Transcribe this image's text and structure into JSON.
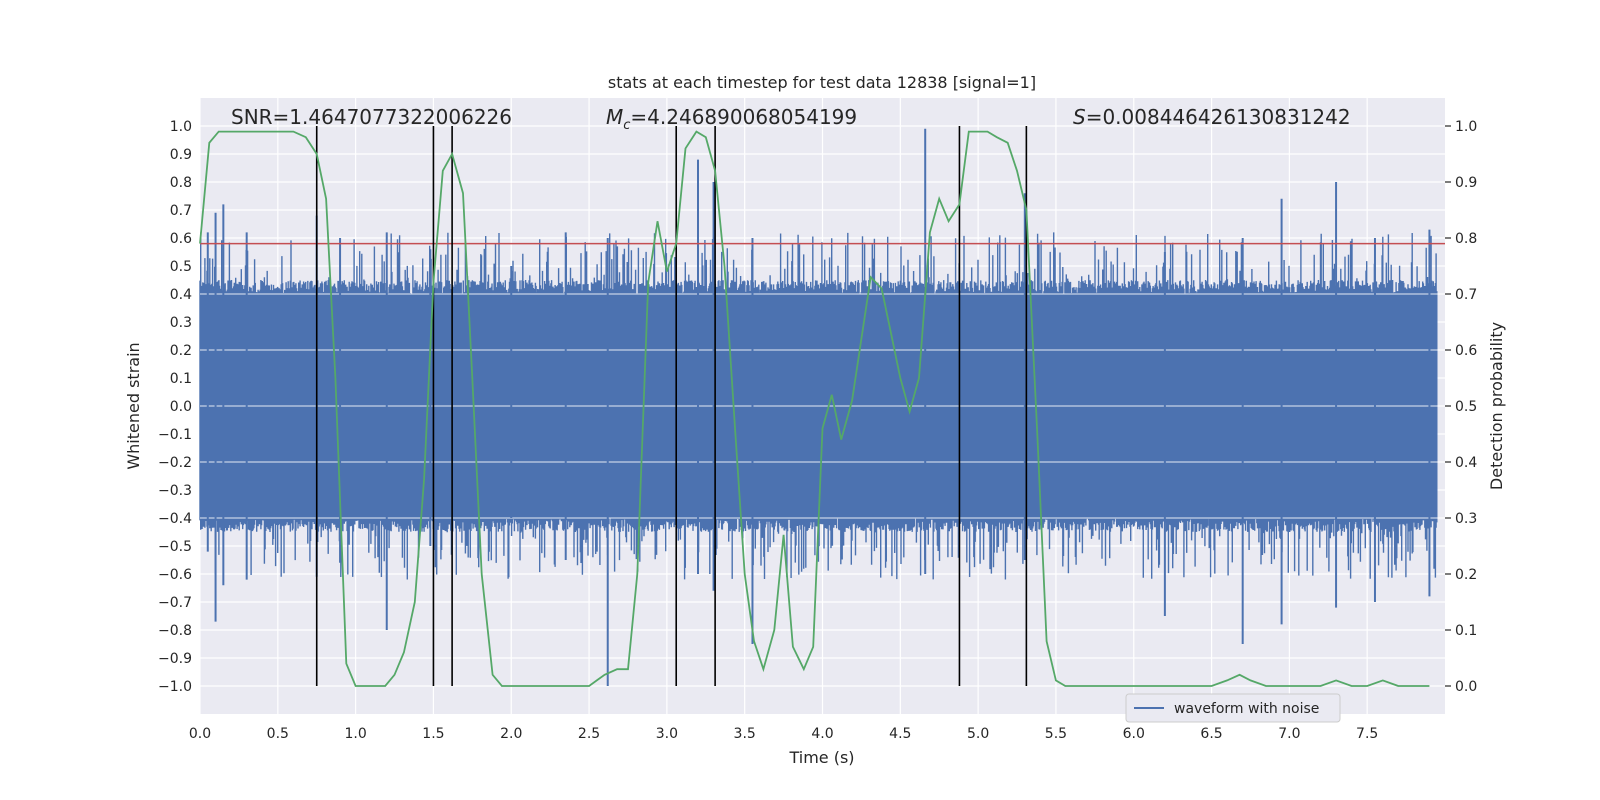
{
  "chart_data": {
    "type": "line",
    "title": "stats at each timestep for test data 12838 [signal=1]",
    "xlabel": "Time (s)",
    "ylabel": "Whitened strain",
    "y2label": "Detection probability",
    "xlim": [
      0.0,
      8.0
    ],
    "ylim": [
      -1.1,
      1.1
    ],
    "y2lim": [
      -0.05,
      1.05
    ],
    "grid": true,
    "x_ticks": [
      "0.0",
      "0.5",
      "1.0",
      "1.5",
      "2.0",
      "2.5",
      "3.0",
      "3.5",
      "4.0",
      "4.5",
      "5.0",
      "5.5",
      "6.0",
      "6.5",
      "7.0",
      "7.5"
    ],
    "y_ticks": [
      "1.0",
      "0.9",
      "0.8",
      "0.7",
      "0.6",
      "0.5",
      "0.4",
      "0.3",
      "0.2",
      "0.1",
      "0.0",
      "−0.1",
      "−0.2",
      "−0.3",
      "−0.4",
      "−0.5",
      "−0.6",
      "−0.7",
      "−0.8",
      "−0.9",
      "−1.0"
    ],
    "y2_ticks": [
      "1.0",
      "0.9",
      "0.8",
      "0.7",
      "0.6",
      "0.5",
      "0.4",
      "0.3",
      "0.2",
      "0.1",
      "0.0"
    ],
    "annotations": {
      "snr": "SNR=1.4647077322006226",
      "mc_symbol": "M",
      "mc_sub": "c",
      "mc_value": "=4.246890068054199",
      "s_symbol": "S",
      "s_value": "=0.008446426130831242"
    },
    "legend": {
      "label": "waveform with noise",
      "placement": "lower-right"
    },
    "threshold": 0.79,
    "segment_boundaries": [
      0.75,
      1.5,
      1.62,
      3.06,
      3.31,
      4.88,
      5.31
    ],
    "waveform": {
      "name": "waveform with noise",
      "color": "#4c72b0",
      "envelope_high": 0.4,
      "envelope_low": -0.4,
      "spikes": [
        [
          0.05,
          0.62,
          -0.52
        ],
        [
          0.1,
          0.69,
          -0.77
        ],
        [
          0.15,
          0.72,
          -0.64
        ],
        [
          0.3,
          0.62,
          -0.62
        ],
        [
          0.75,
          0.68,
          -0.61
        ],
        [
          0.9,
          0.6,
          -0.56
        ],
        [
          1.2,
          0.62,
          -0.8
        ],
        [
          1.48,
          0.56,
          -0.5
        ],
        [
          2.0,
          0.5,
          -0.4
        ],
        [
          2.35,
          0.62,
          -0.55
        ],
        [
          2.62,
          0.6,
          -1.0
        ],
        [
          3.2,
          0.88,
          -0.6
        ],
        [
          3.3,
          0.8,
          -0.66
        ],
        [
          3.55,
          0.6,
          -0.85
        ],
        [
          4.66,
          0.99,
          -0.6
        ],
        [
          5.3,
          0.76,
          -0.55
        ],
        [
          6.2,
          0.55,
          -0.75
        ],
        [
          6.7,
          0.6,
          -0.85
        ],
        [
          6.95,
          0.74,
          -0.78
        ],
        [
          7.3,
          0.8,
          -0.72
        ],
        [
          7.55,
          0.6,
          -0.7
        ],
        [
          7.9,
          0.63,
          -0.68
        ]
      ]
    },
    "detection_probability": {
      "color": "#55a868",
      "x": [
        0.0,
        0.06,
        0.12,
        0.2,
        0.3,
        0.4,
        0.5,
        0.6,
        0.68,
        0.75,
        0.81,
        0.87,
        0.94,
        1.0,
        1.06,
        1.12,
        1.19,
        1.25,
        1.31,
        1.38,
        1.44,
        1.5,
        1.56,
        1.62,
        1.69,
        1.75,
        1.81,
        1.88,
        1.94,
        2.0,
        2.1,
        2.2,
        2.3,
        2.4,
        2.5,
        2.55,
        2.6,
        2.68,
        2.75,
        2.81,
        2.88,
        2.94,
        3.0,
        3.06,
        3.12,
        3.19,
        3.25,
        3.31,
        3.37,
        3.44,
        3.5,
        3.56,
        3.62,
        3.69,
        3.75,
        3.81,
        3.88,
        3.94,
        4.0,
        4.06,
        4.12,
        4.19,
        4.25,
        4.31,
        4.38,
        4.44,
        4.5,
        4.56,
        4.62,
        4.69,
        4.75,
        4.81,
        4.88,
        4.94,
        5.0,
        5.06,
        5.12,
        5.19,
        5.25,
        5.31,
        5.38,
        5.44,
        5.5,
        5.56,
        5.7,
        5.8,
        5.9,
        6.0,
        6.2,
        6.4,
        6.5,
        6.6,
        6.68,
        6.75,
        6.85,
        7.0,
        7.2,
        7.3,
        7.4,
        7.5,
        7.6,
        7.7,
        7.8,
        7.9
      ],
      "y": [
        0.79,
        0.97,
        0.99,
        0.99,
        0.99,
        0.99,
        0.99,
        0.99,
        0.98,
        0.95,
        0.87,
        0.55,
        0.04,
        0.0,
        0.0,
        0.0,
        0.0,
        0.02,
        0.06,
        0.15,
        0.37,
        0.72,
        0.92,
        0.95,
        0.88,
        0.55,
        0.2,
        0.02,
        0.0,
        0.0,
        0.0,
        0.0,
        0.0,
        0.0,
        0.0,
        0.01,
        0.02,
        0.03,
        0.03,
        0.2,
        0.72,
        0.83,
        0.74,
        0.79,
        0.96,
        0.99,
        0.98,
        0.92,
        0.75,
        0.45,
        0.2,
        0.08,
        0.03,
        0.1,
        0.27,
        0.07,
        0.03,
        0.07,
        0.46,
        0.52,
        0.44,
        0.51,
        0.62,
        0.73,
        0.71,
        0.63,
        0.55,
        0.49,
        0.55,
        0.81,
        0.87,
        0.83,
        0.86,
        0.99,
        0.99,
        0.99,
        0.98,
        0.97,
        0.92,
        0.85,
        0.45,
        0.08,
        0.01,
        0.0,
        0.0,
        0.0,
        0.0,
        0.0,
        0.0,
        0.0,
        0.0,
        0.01,
        0.02,
        0.01,
        0.0,
        0.0,
        0.0,
        0.01,
        0.0,
        0.0,
        0.01,
        0.0,
        0.0,
        0.0
      ]
    }
  }
}
